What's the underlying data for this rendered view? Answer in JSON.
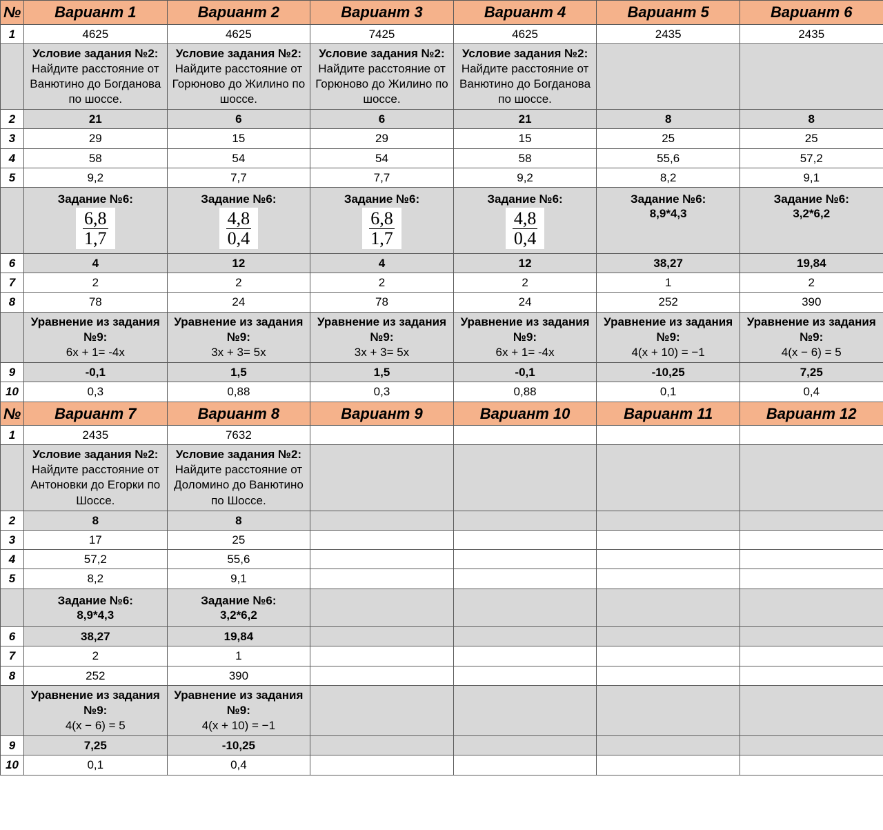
{
  "colors": {
    "header_bg": "#f5b28b",
    "grey_bg": "#d8d8d8",
    "white_bg": "#ffffff",
    "border": "#5a5a5a"
  },
  "labels": {
    "numero": "№",
    "task2_prefix": "Условие задания №2:",
    "task6_prefix": "Задание №6:",
    "task9_prefix": "Уравнение из задания №9:"
  },
  "blocks": [
    {
      "headers": [
        "Вариант 1",
        "Вариант 2",
        "Вариант 3",
        "Вариант 4",
        "Вариант 5",
        "Вариант 6"
      ],
      "rows": [
        {
          "n": "1",
          "grey": false,
          "vals": [
            "4625",
            "4625",
            "7425",
            "4625",
            "2435",
            "2435"
          ]
        },
        {
          "n": "",
          "grey": true,
          "type": "task2",
          "vals": [
            "Найдите расстояние от Ванютино до Богданова по шоссе.",
            "Найдите расстояние от Горюново до Жилино по шоссе.",
            "Найдите расстояние от Горюново до Жилино по шоссе.",
            "Найдите расстояние от Ванютино до Богданова по шоссе.",
            "",
            ""
          ]
        },
        {
          "n": "2",
          "grey": true,
          "bold": true,
          "vals": [
            "21",
            "6",
            "6",
            "21",
            "8",
            "8"
          ]
        },
        {
          "n": "3",
          "grey": false,
          "vals": [
            "29",
            "15",
            "29",
            "15",
            "25",
            "25"
          ]
        },
        {
          "n": "4",
          "grey": false,
          "vals": [
            "58",
            "54",
            "54",
            "58",
            "55,6",
            "57,2"
          ]
        },
        {
          "n": "5",
          "grey": false,
          "vals": [
            "9,2",
            "7,7",
            "7,7",
            "9,2",
            "8,2",
            "9,1"
          ]
        },
        {
          "n": "",
          "grey": true,
          "type": "task6",
          "vals": [
            {
              "kind": "frac",
              "top": "6,8",
              "bot": "1,7"
            },
            {
              "kind": "frac",
              "top": "4,8",
              "bot": "0,4"
            },
            {
              "kind": "frac",
              "top": "6,8",
              "bot": "1,7"
            },
            {
              "kind": "frac",
              "top": "4,8",
              "bot": "0,4"
            },
            {
              "kind": "text",
              "text": "8,9*4,3"
            },
            {
              "kind": "text",
              "text": "3,2*6,2"
            }
          ]
        },
        {
          "n": "6",
          "grey": true,
          "bold": true,
          "vals": [
            "4",
            "12",
            "4",
            "12",
            "38,27",
            "19,84"
          ]
        },
        {
          "n": "7",
          "grey": false,
          "vals": [
            "2",
            "2",
            "2",
            "2",
            "1",
            "2"
          ]
        },
        {
          "n": "8",
          "grey": false,
          "vals": [
            "78",
            "24",
            "78",
            "24",
            "252",
            "390"
          ]
        },
        {
          "n": "",
          "grey": true,
          "type": "task9",
          "vals": [
            "6x + 1= -4x",
            "3x + 3= 5x",
            "3x + 3= 5x",
            "6x + 1= -4x",
            "4(x + 10) = −1",
            "4(x − 6) = 5"
          ]
        },
        {
          "n": "9",
          "grey": true,
          "bold": true,
          "vals": [
            "-0,1",
            "1,5",
            "1,5",
            "-0,1",
            "-10,25",
            "7,25"
          ]
        },
        {
          "n": "10",
          "grey": false,
          "vals": [
            "0,3",
            "0,88",
            "0,3",
            "0,88",
            "0,1",
            "0,4"
          ]
        }
      ]
    },
    {
      "headers": [
        "Вариант 7",
        "Вариант 8",
        "Вариант 9",
        "Вариант 10",
        "Вариант 11",
        "Вариант 12"
      ],
      "rows": [
        {
          "n": "1",
          "grey": false,
          "vals": [
            "2435",
            "7632",
            "",
            "",
            "",
            ""
          ]
        },
        {
          "n": "",
          "grey": true,
          "type": "task2",
          "vals": [
            "Найдите расстояние от Антоновки до Егорки по Шоссе.",
            "Найдите расстояние от Доломино до Ванютино по Шоссе.",
            "",
            "",
            "",
            ""
          ]
        },
        {
          "n": "2",
          "grey": true,
          "bold": true,
          "vals": [
            "8",
            "8",
            "",
            "",
            "",
            ""
          ]
        },
        {
          "n": "3",
          "grey": false,
          "vals": [
            "17",
            "25",
            "",
            "",
            "",
            ""
          ]
        },
        {
          "n": "4",
          "grey": false,
          "vals": [
            "57,2",
            "55,6",
            "",
            "",
            "",
            ""
          ]
        },
        {
          "n": "5",
          "grey": false,
          "vals": [
            "8,2",
            "9,1",
            "",
            "",
            "",
            ""
          ]
        },
        {
          "n": "",
          "grey": true,
          "type": "task6",
          "vals": [
            {
              "kind": "text",
              "text": "8,9*4,3"
            },
            {
              "kind": "text",
              "text": "3,2*6,2"
            },
            {
              "kind": "empty"
            },
            {
              "kind": "empty"
            },
            {
              "kind": "empty"
            },
            {
              "kind": "empty"
            }
          ]
        },
        {
          "n": "6",
          "grey": true,
          "bold": true,
          "vals": [
            "38,27",
            "19,84",
            "",
            "",
            "",
            ""
          ]
        },
        {
          "n": "7",
          "grey": false,
          "vals": [
            "2",
            "1",
            "",
            "",
            "",
            ""
          ]
        },
        {
          "n": "8",
          "grey": false,
          "vals": [
            "252",
            "390",
            "",
            "",
            "",
            ""
          ]
        },
        {
          "n": "",
          "grey": true,
          "type": "task9",
          "vals": [
            "4(x − 6) = 5",
            "4(x + 10) = −1",
            "",
            "",
            "",
            ""
          ]
        },
        {
          "n": "9",
          "grey": true,
          "bold": true,
          "vals": [
            "7,25",
            "-10,25",
            "",
            "",
            "",
            ""
          ]
        },
        {
          "n": "10",
          "grey": false,
          "vals": [
            "0,1",
            "0,4",
            "",
            "",
            "",
            ""
          ]
        }
      ]
    }
  ]
}
